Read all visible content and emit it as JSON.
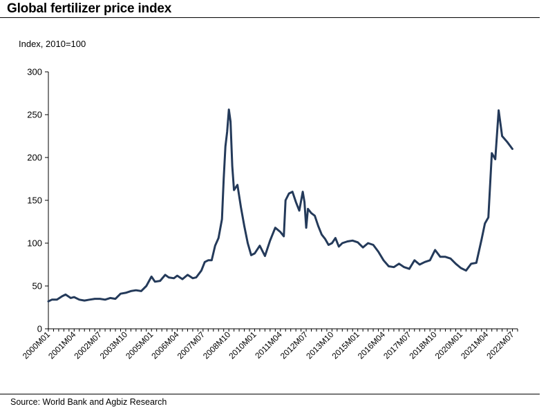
{
  "header": {
    "title": "Global fertilizer price index"
  },
  "footer": {
    "source": "Source: World Bank and Agbiz Research"
  },
  "colors": {
    "line": "#243a5a",
    "axis": "#000000"
  },
  "chart_data": {
    "type": "line",
    "title": "Global fertilizer price index",
    "unit_label": "Index, 2010=100",
    "xlabel": "",
    "ylabel": "",
    "ylim": [
      0,
      300
    ],
    "yticks": [
      0,
      50,
      100,
      150,
      200,
      250,
      300
    ],
    "x_start": "2000M01",
    "x_end": "2022M10",
    "x_tick_labels": [
      "2000M01",
      "2001M04",
      "2002M07",
      "2003M10",
      "2005M01",
      "2006M04",
      "2007M07",
      "2008M10",
      "2010M01",
      "2011M04",
      "2012M07",
      "2013M10",
      "2015M01",
      "2016M04",
      "2017M07",
      "2018M10",
      "2020M01",
      "2021M04",
      "2022M07"
    ],
    "grid": false,
    "legend": "none",
    "series": [
      {
        "points": [
          [
            "2000M01",
            32
          ],
          [
            "2000M03",
            34
          ],
          [
            "2000M06",
            34
          ],
          [
            "2000M09",
            38
          ],
          [
            "2000M11",
            40
          ],
          [
            "2001M02",
            36
          ],
          [
            "2001M04",
            37
          ],
          [
            "2001M07",
            34
          ],
          [
            "2001M10",
            33
          ],
          [
            "2002M01",
            34
          ],
          [
            "2002M04",
            35
          ],
          [
            "2002M07",
            35
          ],
          [
            "2002M10",
            34
          ],
          [
            "2003M01",
            36
          ],
          [
            "2003M04",
            35
          ],
          [
            "2003M07",
            41
          ],
          [
            "2003M10",
            42
          ],
          [
            "2004M01",
            44
          ],
          [
            "2004M04",
            45
          ],
          [
            "2004M07",
            44
          ],
          [
            "2004M10",
            50
          ],
          [
            "2005M01",
            61
          ],
          [
            "2005M03",
            55
          ],
          [
            "2005M06",
            56
          ],
          [
            "2005M09",
            63
          ],
          [
            "2005M11",
            60
          ],
          [
            "2006M02",
            59
          ],
          [
            "2006M04",
            62
          ],
          [
            "2006M07",
            58
          ],
          [
            "2006M10",
            63
          ],
          [
            "2007M01",
            59
          ],
          [
            "2007M03",
            60
          ],
          [
            "2007M06",
            68
          ],
          [
            "2007M08",
            78
          ],
          [
            "2007M10",
            80
          ],
          [
            "2007M12",
            80
          ],
          [
            "2008M02",
            97
          ],
          [
            "2008M04",
            106
          ],
          [
            "2008M06",
            128
          ],
          [
            "2008M07",
            175
          ],
          [
            "2008M08",
            213
          ],
          [
            "2008M09",
            230
          ],
          [
            "2008M10",
            256
          ],
          [
            "2008M11",
            242
          ],
          [
            "2008M12",
            190
          ],
          [
            "2009M01",
            162
          ],
          [
            "2009M03",
            168
          ],
          [
            "2009M05",
            142
          ],
          [
            "2009M07",
            120
          ],
          [
            "2009M09",
            100
          ],
          [
            "2009M11",
            86
          ],
          [
            "2010M01",
            88
          ],
          [
            "2010M04",
            97
          ],
          [
            "2010M07",
            85
          ],
          [
            "2010M10",
            103
          ],
          [
            "2011M01",
            118
          ],
          [
            "2011M04",
            113
          ],
          [
            "2011M06",
            108
          ],
          [
            "2011M07",
            150
          ],
          [
            "2011M09",
            158
          ],
          [
            "2011M11",
            160
          ],
          [
            "2012M01",
            148
          ],
          [
            "2012M03",
            138
          ],
          [
            "2012M05",
            160
          ],
          [
            "2012M06",
            148
          ],
          [
            "2012M07",
            118
          ],
          [
            "2012M08",
            140
          ],
          [
            "2012M10",
            135
          ],
          [
            "2012M12",
            132
          ],
          [
            "2013M02",
            120
          ],
          [
            "2013M04",
            110
          ],
          [
            "2013M06",
            105
          ],
          [
            "2013M08",
            98
          ],
          [
            "2013M10",
            100
          ],
          [
            "2013M12",
            106
          ],
          [
            "2014M02",
            96
          ],
          [
            "2014M04",
            100
          ],
          [
            "2014M07",
            102
          ],
          [
            "2014M10",
            103
          ],
          [
            "2015M01",
            101
          ],
          [
            "2015M04",
            95
          ],
          [
            "2015M07",
            100
          ],
          [
            "2015M10",
            98
          ],
          [
            "2016M01",
            90
          ],
          [
            "2016M04",
            80
          ],
          [
            "2016M07",
            73
          ],
          [
            "2016M10",
            72
          ],
          [
            "2017M01",
            76
          ],
          [
            "2017M04",
            72
          ],
          [
            "2017M07",
            70
          ],
          [
            "2017M10",
            80
          ],
          [
            "2018M01",
            75
          ],
          [
            "2018M04",
            78
          ],
          [
            "2018M07",
            80
          ],
          [
            "2018M10",
            92
          ],
          [
            "2019M01",
            84
          ],
          [
            "2019M04",
            84
          ],
          [
            "2019M07",
            82
          ],
          [
            "2019M10",
            76
          ],
          [
            "2020M01",
            71
          ],
          [
            "2020M04",
            68
          ],
          [
            "2020M07",
            76
          ],
          [
            "2020M10",
            77
          ],
          [
            "2021M01",
            104
          ],
          [
            "2021M03",
            123
          ],
          [
            "2021M05",
            130
          ],
          [
            "2021M07",
            205
          ],
          [
            "2021M09",
            198
          ],
          [
            "2021M11",
            255
          ],
          [
            "2022M01",
            225
          ],
          [
            "2022M04",
            218
          ],
          [
            "2022M07",
            210
          ]
        ]
      }
    ]
  }
}
